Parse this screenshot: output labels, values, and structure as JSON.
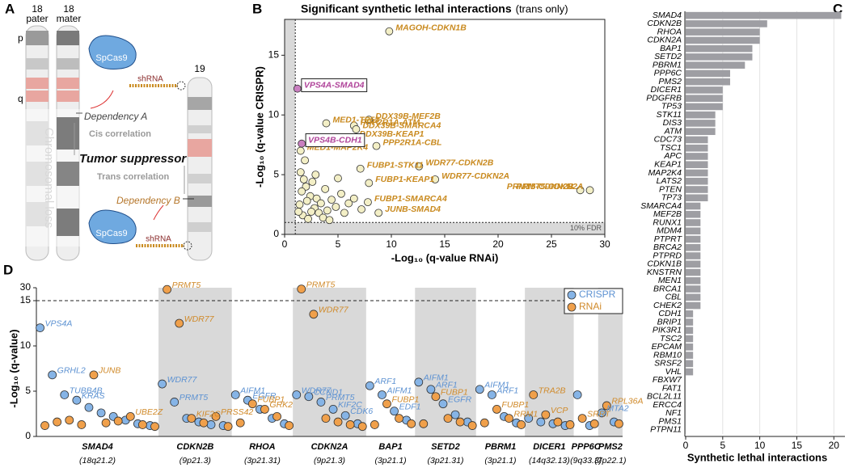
{
  "diagram": {
    "panel": "A",
    "pater_number": "18",
    "pater": "pater",
    "mater_number": "18",
    "mater": "mater",
    "p_arm": "p",
    "q_arm": "q",
    "chr19": "19",
    "cas9_top": "SpCas9",
    "shrna_top": "shRNA",
    "cas9_bottom": "SpCas9",
    "shrna_bottom": "shRNA",
    "dependency_a": "Dependency A",
    "cis": "Cis correlation",
    "loss": "Chromosomal loss",
    "tumor_suppressor": "Tumor suppressor",
    "trans": "Trans correlation",
    "dependency_b": "Dependency B"
  },
  "chart_data": [
    {
      "type": "scatter",
      "panel": "B",
      "title": "Significant synthetic lethal interactions",
      "subtitle": "(trans only)",
      "x_label": "-Log₁₀ (q-value RNAi)",
      "y_label": "-Log₁₀ (q-value CRISPR)",
      "annotation": "10% FDR",
      "threshold": 1,
      "xlim": [
        0,
        30
      ],
      "xticks": [
        0,
        5,
        10,
        15,
        20,
        25,
        30
      ],
      "ylim": [
        0,
        18
      ],
      "yticks": [
        0,
        5,
        10,
        15
      ],
      "series": [
        {
          "color": "#f3efc6",
          "label_color": "#c98a1f",
          "boxed": false,
          "x": [
            9.8,
            3.9,
            6.5,
            7.9,
            6.7,
            6.4,
            8.6,
            1.5,
            7.1,
            12.6,
            7.9,
            14.1,
            27.7,
            28.6,
            7.8,
            8.8,
            1.5,
            1.8,
            2.0,
            1.6,
            2.4,
            2.1,
            1.4,
            2.8,
            3.0,
            3.4,
            2.6,
            3.2,
            1.7,
            4.0,
            4.4,
            3.8,
            5.0,
            4.8,
            5.6,
            6.0,
            2.2,
            1.3,
            6.5,
            3.6,
            4.2,
            7.2,
            2.9,
            1.9,
            5.3,
            2.5
          ],
          "values": [
            17.0,
            9.3,
            9.1,
            9.6,
            8.8,
            8.1,
            7.4,
            7.0,
            5.5,
            5.7,
            4.3,
            4.6,
            3.7,
            3.7,
            2.7,
            1.8,
            5.2,
            4.6,
            4.0,
            3.6,
            3.2,
            2.8,
            2.5,
            2.2,
            3.0,
            2.6,
            4.4,
            1.8,
            1.6,
            2.0,
            2.9,
            3.8,
            4.7,
            2.3,
            1.8,
            2.6,
            1.3,
            1.9,
            3.0,
            1.4,
            1.2,
            2.1,
            5.0,
            6.2,
            3.4,
            1.9
          ],
          "labels": [
            "MAGOH-CDKN1B",
            "MED1-TP53",
            "PPP2R1A-ATM",
            "DDX39B-MEF2B",
            "DDX39B-SMARCA4",
            "DDX39B-KEAP1",
            "PPP2R1A-CBL",
            "MED1-MAP2K4",
            "FUBP1-STK11",
            "WDR77-CDKN2B",
            "FUBP1-KEAP1",
            "WDR77-CDKN2A",
            "PRMT5-CDKN2B",
            "PRMT5-CDKN2A",
            "FUBP1-SMARCA4",
            "JUNB-SMAD4",
            null,
            null,
            null,
            null,
            null,
            null,
            null,
            null,
            null,
            null,
            null,
            null,
            null,
            null,
            null,
            null,
            null,
            null,
            null,
            null,
            null,
            null,
            null,
            null,
            null,
            null,
            null,
            null,
            null,
            null
          ]
        },
        {
          "color": "#c97fc0",
          "label_color": "#b0449a",
          "boxed": true,
          "x": [
            1.2,
            1.6
          ],
          "values": [
            12.2,
            7.6
          ],
          "labels": [
            "VPS4A-SMAD4",
            "VPS4B-CDH1"
          ]
        }
      ]
    },
    {
      "type": "bar",
      "panel": "C",
      "orientation": "horizontal",
      "x_label": "Synthetic lethal interactions",
      "color": "#9e9ea3",
      "grid": true,
      "xlim": [
        0,
        21.5
      ],
      "xticks": [
        0,
        5,
        10,
        15,
        20
      ],
      "categories": [
        "SMAD4",
        "CDKN2B",
        "RHOA",
        "CDKN2A",
        "BAP1",
        "SETD2",
        "PBRM1",
        "PPP6C",
        "PMS2",
        "DICER1",
        "PDGFRB",
        "TP53",
        "STK11",
        "DIS3",
        "ATM",
        "CDC73",
        "TSC1",
        "APC",
        "KEAP1",
        "MAP2K4",
        "LATS2",
        "PTEN",
        "TP73",
        "SMARCA4",
        "MEF2B",
        "RUNX1",
        "MDM4",
        "PTPRT",
        "BRCA2",
        "PTPRD",
        "CDKN1B",
        "KNSTRN",
        "MEN1",
        "BRCA1",
        "CBL",
        "CHEK2",
        "CDH1",
        "BRIP1",
        "PIK3R1",
        "TSC2",
        "EPCAM",
        "RBM10",
        "SRSF2",
        "VHL",
        "FBXW7",
        "FAT1",
        "BCL2L11",
        "ERCC4",
        "NF1",
        "PMS1",
        "PTPN11"
      ],
      "values": [
        21,
        11,
        10,
        10,
        9,
        9,
        8,
        6,
        6,
        5,
        5,
        5,
        4,
        4,
        4,
        3,
        3,
        3,
        3,
        3,
        3,
        3,
        3,
        2,
        2,
        2,
        2,
        2,
        2,
        2,
        2,
        2,
        2,
        2,
        2,
        2,
        1,
        1,
        1,
        1,
        1,
        1,
        1,
        1,
        0,
        0,
        0,
        0,
        0,
        0,
        0
      ]
    },
    {
      "type": "dot",
      "panel": "D",
      "y_label": "-Log₁₀ (q-value)",
      "ylim": [
        0,
        30
      ],
      "yticks": [
        0,
        5,
        10,
        15,
        30
      ],
      "series": [
        {
          "name": "CRISPR",
          "color": "#86b4e6",
          "label_color": "#5d92d2"
        },
        {
          "name": "RNAi",
          "color": "#f0a04b",
          "label_color": "#d08a2a"
        }
      ],
      "groups": [
        {
          "name": "SMAD4",
          "locus": "(18q21.2)",
          "series": [
            {
              "values": [
                12,
                6.8,
                4.6,
                4.0,
                3.2,
                2.6,
                2.2,
                1.8,
                1.4,
                1.2
              ],
              "labels": [
                "VPS4A",
                "GRHL2",
                "TUBB4B",
                "KRAS",
                null,
                null,
                null,
                null,
                null,
                null
              ]
            },
            {
              "values": [
                1.2,
                1.6,
                1.8,
                1.3,
                6.8,
                1.5,
                1.7,
                2.2,
                1.3,
                1.1
              ],
              "labels": [
                null,
                null,
                null,
                null,
                "JUNB",
                null,
                null,
                "UBE2Z",
                null,
                null
              ]
            }
          ]
        },
        {
          "name": "CDKN2B",
          "locus": "(9p21.3)",
          "series": [
            {
              "values": [
                5.8,
                3.8,
                2.0,
                1.6,
                1.3,
                1.2
              ],
              "labels": [
                "WDR77",
                "PRMT5",
                null,
                null,
                null,
                null
              ]
            },
            {
              "values": [
                28,
                12.5,
                2.0,
                1.5,
                2.2,
                1.1
              ],
              "labels": [
                "PRMT5",
                "WDR77",
                "KIF2C",
                null,
                "PRSS42",
                null
              ]
            }
          ]
        },
        {
          "name": "RHOA",
          "locus": "(3p21.31)",
          "series": [
            {
              "values": [
                4.6,
                4.0,
                3.0,
                2.0,
                1.4
              ],
              "labels": [
                "AIFM1",
                "EGFR",
                null,
                null,
                null
              ]
            },
            {
              "values": [
                1.5,
                3.6,
                3.0,
                2.2,
                1.2
              ],
              "labels": [
                null,
                "FUBP1",
                "GRK2",
                null,
                null
              ]
            }
          ]
        },
        {
          "name": "CDKN2A",
          "locus": "(9p21.3)",
          "series": [
            {
              "values": [
                4.6,
                4.4,
                3.8,
                3.0,
                2.3,
                1.4
              ],
              "labels": [
                "WDR77",
                "CCND1",
                "PRMT5",
                "KIF2C",
                "CDK6",
                null
              ]
            },
            {
              "values": [
                28.5,
                13.5,
                2.0,
                1.6,
                1.3,
                1.1
              ],
              "labels": [
                "PRMT5",
                "WDR77",
                null,
                null,
                null,
                null
              ]
            }
          ]
        },
        {
          "name": "BAP1",
          "locus": "(3p21.1)",
          "series": [
            {
              "values": [
                5.6,
                4.6,
                2.8,
                1.8
              ],
              "labels": [
                "ARF1",
                "AIFM1",
                "EDF1",
                null
              ]
            },
            {
              "values": [
                1.3,
                3.6,
                2.0,
                1.4
              ],
              "labels": [
                null,
                "FUBP1",
                null,
                null
              ]
            }
          ]
        },
        {
          "name": "SETD2",
          "locus": "(3p21.31)",
          "series": [
            {
              "values": [
                6.0,
                5.2,
                3.6,
                2.4,
                1.6
              ],
              "labels": [
                "AIFM1",
                "ARF1",
                "EGFR",
                null,
                null
              ]
            },
            {
              "values": [
                1.4,
                4.4,
                2.0,
                1.6,
                1.2
              ],
              "labels": [
                null,
                "FUBP1",
                null,
                null,
                null
              ]
            }
          ]
        },
        {
          "name": "PBRM1",
          "locus": "(3p21.1)",
          "series": [
            {
              "values": [
                5.2,
                4.6,
                2.2,
                1.5
              ],
              "labels": [
                "AIFM1",
                "ARF1",
                null,
                null
              ]
            },
            {
              "values": [
                1.5,
                3.0,
                2.0,
                1.3
              ],
              "labels": [
                null,
                "FUBP1",
                "RRM1",
                null
              ]
            }
          ]
        },
        {
          "name": "DICER1",
          "locus": "(14q32.13)",
          "series": [
            {
              "values": [
                2.0,
                1.6,
                1.4,
                1.2
              ],
              "labels": [
                null,
                null,
                null,
                null
              ]
            },
            {
              "values": [
                4.6,
                2.4,
                1.6,
                1.3
              ],
              "labels": [
                "TRA2B",
                "VCP",
                null,
                null
              ]
            }
          ]
        },
        {
          "name": "PPP6C",
          "locus": "(9q33.3)",
          "series": [
            {
              "values": [
                4.6,
                1.2
              ],
              "labels": [
                null,
                null
              ]
            },
            {
              "values": [
                2.0,
                1.4
              ],
              "labels": [
                "SRRT",
                null
              ]
            }
          ]
        },
        {
          "name": "PMS2",
          "locus": "(7p22.1)",
          "series": [
            {
              "values": [
                2.6,
                1.6
              ],
              "labels": [
                "MTA2",
                null
              ]
            },
            {
              "values": [
                3.4,
                1.4
              ],
              "labels": [
                "RPL36A",
                null
              ]
            }
          ]
        }
      ]
    }
  ]
}
